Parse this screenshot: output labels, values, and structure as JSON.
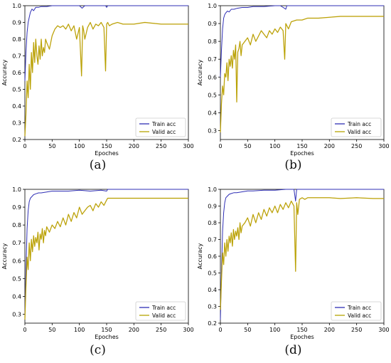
{
  "figure": {
    "colors": {
      "train": "#2f2fb5",
      "valid": "#b5a300",
      "valid_noise": "#d18a00"
    }
  },
  "chart_data": [
    {
      "panel": "a",
      "caption": "(a)",
      "type": "line",
      "xlabel": "Epoches",
      "ylabel": "Accuracy",
      "xlim": [
        0,
        300
      ],
      "ylim": [
        0.2,
        1.0
      ],
      "xticks": [
        0,
        50,
        100,
        150,
        200,
        250,
        300
      ],
      "yticks": [
        0.2,
        0.3,
        0.4,
        0.5,
        0.6,
        0.7,
        0.8,
        0.9,
        1.0
      ],
      "legend": "lower-right",
      "grid": false,
      "series": [
        {
          "name": "Train acc",
          "x": [
            0,
            2,
            4,
            6,
            8,
            10,
            13,
            16,
            20,
            25,
            30,
            40,
            50,
            60,
            80,
            100,
            105,
            110,
            130,
            148,
            150,
            152,
            170,
            200,
            250,
            300
          ],
          "y": [
            0.55,
            0.72,
            0.84,
            0.9,
            0.93,
            0.96,
            0.98,
            0.97,
            0.99,
            0.99,
            0.995,
            0.995,
            1.0,
            1.0,
            1.0,
            1.0,
            0.985,
            1.0,
            1.0,
            1.0,
            0.99,
            1.0,
            1.0,
            1.0,
            1.0,
            1.0
          ]
        },
        {
          "name": "Valid acc",
          "x": [
            0,
            2,
            4,
            6,
            8,
            10,
            12,
            14,
            16,
            18,
            20,
            22,
            24,
            26,
            28,
            30,
            32,
            34,
            36,
            38,
            40,
            45,
            50,
            55,
            60,
            65,
            70,
            75,
            80,
            85,
            90,
            95,
            100,
            104,
            106,
            108,
            110,
            115,
            120,
            125,
            130,
            135,
            140,
            145,
            148,
            150,
            152,
            155,
            160,
            170,
            180,
            200,
            220,
            250,
            280,
            300
          ],
          "y": [
            0.22,
            0.35,
            0.55,
            0.45,
            0.65,
            0.5,
            0.72,
            0.6,
            0.78,
            0.66,
            0.8,
            0.7,
            0.65,
            0.76,
            0.68,
            0.8,
            0.7,
            0.75,
            0.72,
            0.8,
            0.78,
            0.74,
            0.82,
            0.86,
            0.88,
            0.87,
            0.88,
            0.86,
            0.89,
            0.85,
            0.88,
            0.8,
            0.87,
            0.58,
            0.88,
            0.85,
            0.8,
            0.87,
            0.9,
            0.86,
            0.89,
            0.88,
            0.9,
            0.87,
            0.61,
            0.89,
            0.9,
            0.88,
            0.89,
            0.9,
            0.89,
            0.89,
            0.9,
            0.89,
            0.89,
            0.89
          ]
        }
      ]
    },
    {
      "panel": "b",
      "caption": "(b)",
      "type": "line",
      "xlabel": "Epoches",
      "ylabel": "Accuracy",
      "xlim": [
        0,
        300
      ],
      "ylim": [
        0.25,
        1.0
      ],
      "xticks": [
        0,
        50,
        100,
        150,
        200,
        250,
        300
      ],
      "yticks": [
        0.3,
        0.4,
        0.5,
        0.6,
        0.7,
        0.8,
        0.9,
        1.0
      ],
      "legend": "lower-right",
      "grid": false,
      "series": [
        {
          "name": "Train acc",
          "x": [
            0,
            2,
            4,
            6,
            8,
            10,
            13,
            16,
            20,
            25,
            30,
            40,
            50,
            60,
            80,
            100,
            110,
            118,
            120,
            122,
            130,
            150,
            200,
            250,
            300
          ],
          "y": [
            0.6,
            0.75,
            0.87,
            0.93,
            0.95,
            0.96,
            0.97,
            0.965,
            0.98,
            0.98,
            0.985,
            0.99,
            0.99,
            0.995,
            0.995,
            1.0,
            1.0,
            0.985,
            0.98,
            1.0,
            1.0,
            1.0,
            1.0,
            1.0,
            1.0
          ]
        },
        {
          "name": "Valid acc",
          "x": [
            0,
            2,
            4,
            6,
            8,
            10,
            12,
            14,
            16,
            18,
            20,
            22,
            24,
            26,
            28,
            30,
            32,
            34,
            36,
            38,
            40,
            45,
            50,
            55,
            60,
            65,
            70,
            75,
            80,
            85,
            90,
            95,
            100,
            105,
            110,
            115,
            118,
            120,
            125,
            130,
            140,
            150,
            160,
            180,
            200,
            220,
            250,
            280,
            300
          ],
          "y": [
            0.29,
            0.45,
            0.55,
            0.5,
            0.62,
            0.6,
            0.68,
            0.58,
            0.7,
            0.66,
            0.72,
            0.65,
            0.75,
            0.7,
            0.78,
            0.46,
            0.74,
            0.76,
            0.8,
            0.72,
            0.78,
            0.8,
            0.82,
            0.78,
            0.84,
            0.8,
            0.83,
            0.86,
            0.84,
            0.82,
            0.86,
            0.84,
            0.87,
            0.85,
            0.88,
            0.86,
            0.7,
            0.9,
            0.87,
            0.91,
            0.92,
            0.92,
            0.93,
            0.93,
            0.935,
            0.94,
            0.94,
            0.94,
            0.94
          ]
        }
      ]
    },
    {
      "panel": "c",
      "caption": "(c)",
      "type": "line",
      "xlabel": "Epoches",
      "ylabel": "Accuracy",
      "xlim": [
        0,
        300
      ],
      "ylim": [
        0.25,
        1.0
      ],
      "xticks": [
        0,
        50,
        100,
        150,
        200,
        250,
        300
      ],
      "yticks": [
        0.3,
        0.4,
        0.5,
        0.6,
        0.7,
        0.8,
        0.9,
        1.0
      ],
      "legend": "lower-right",
      "grid": false,
      "series": [
        {
          "name": "Train acc",
          "x": [
            0,
            2,
            4,
            6,
            8,
            10,
            13,
            16,
            20,
            25,
            30,
            40,
            50,
            60,
            80,
            100,
            120,
            140,
            150,
            152,
            160,
            200,
            250,
            300
          ],
          "y": [
            0.3,
            0.55,
            0.78,
            0.88,
            0.93,
            0.95,
            0.96,
            0.97,
            0.975,
            0.98,
            0.98,
            0.985,
            0.99,
            0.99,
            0.99,
            0.995,
            0.99,
            0.995,
            0.99,
            1.0,
            1.0,
            1.0,
            1.0,
            1.0
          ]
        },
        {
          "name": "Valid acc",
          "x": [
            0,
            2,
            4,
            6,
            8,
            10,
            12,
            14,
            16,
            18,
            20,
            22,
            24,
            26,
            28,
            30,
            32,
            34,
            36,
            38,
            40,
            45,
            50,
            55,
            60,
            65,
            70,
            75,
            80,
            85,
            90,
            95,
            100,
            105,
            110,
            115,
            120,
            125,
            130,
            135,
            140,
            145,
            150,
            152,
            155,
            160,
            180,
            200,
            220,
            250,
            280,
            300
          ],
          "y": [
            0.27,
            0.45,
            0.62,
            0.55,
            0.7,
            0.6,
            0.72,
            0.65,
            0.74,
            0.68,
            0.73,
            0.7,
            0.76,
            0.66,
            0.75,
            0.72,
            0.78,
            0.7,
            0.77,
            0.74,
            0.79,
            0.76,
            0.8,
            0.78,
            0.82,
            0.79,
            0.84,
            0.8,
            0.86,
            0.82,
            0.87,
            0.84,
            0.9,
            0.86,
            0.88,
            0.9,
            0.91,
            0.88,
            0.92,
            0.9,
            0.93,
            0.91,
            0.94,
            0.95,
            0.95,
            0.95,
            0.95,
            0.95,
            0.95,
            0.95,
            0.95,
            0.95
          ]
        }
      ]
    },
    {
      "panel": "d",
      "caption": "(d)",
      "type": "line",
      "xlabel": "Epoches",
      "ylabel": "Accuracy",
      "xlim": [
        0,
        300
      ],
      "ylim": [
        0.2,
        1.0
      ],
      "xticks": [
        0,
        50,
        100,
        150,
        200,
        250,
        300
      ],
      "yticks": [
        0.2,
        0.3,
        0.4,
        0.5,
        0.6,
        0.7,
        0.8,
        0.9,
        1.0
      ],
      "legend": "lower-right",
      "grid": false,
      "series": [
        {
          "name": "Train acc",
          "x": [
            0,
            2,
            4,
            6,
            8,
            10,
            13,
            16,
            20,
            25,
            30,
            40,
            50,
            60,
            80,
            100,
            120,
            135,
            138,
            140,
            142,
            150,
            200,
            250,
            300
          ],
          "y": [
            0.22,
            0.5,
            0.75,
            0.86,
            0.92,
            0.95,
            0.96,
            0.97,
            0.975,
            0.98,
            0.98,
            0.985,
            0.99,
            0.99,
            0.995,
            0.995,
            1.0,
            1.0,
            0.93,
            1.0,
            1.0,
            1.0,
            1.0,
            1.0,
            1.0
          ]
        },
        {
          "name": "Valid acc",
          "x": [
            0,
            2,
            4,
            6,
            8,
            10,
            12,
            14,
            16,
            18,
            20,
            22,
            24,
            26,
            28,
            30,
            32,
            34,
            36,
            38,
            40,
            45,
            50,
            55,
            60,
            65,
            70,
            75,
            80,
            85,
            90,
            95,
            100,
            105,
            110,
            115,
            120,
            125,
            130,
            135,
            138,
            140,
            142,
            145,
            150,
            155,
            160,
            180,
            200,
            220,
            250,
            280,
            300
          ],
          "y": [
            0.28,
            0.45,
            0.62,
            0.55,
            0.68,
            0.6,
            0.7,
            0.63,
            0.72,
            0.68,
            0.74,
            0.66,
            0.76,
            0.7,
            0.75,
            0.72,
            0.77,
            0.7,
            0.8,
            0.74,
            0.78,
            0.8,
            0.83,
            0.78,
            0.85,
            0.8,
            0.86,
            0.82,
            0.88,
            0.84,
            0.89,
            0.86,
            0.9,
            0.86,
            0.91,
            0.88,
            0.92,
            0.89,
            0.93,
            0.9,
            0.51,
            0.92,
            0.85,
            0.94,
            0.95,
            0.94,
            0.95,
            0.95,
            0.95,
            0.945,
            0.95,
            0.945,
            0.945
          ]
        }
      ]
    }
  ]
}
